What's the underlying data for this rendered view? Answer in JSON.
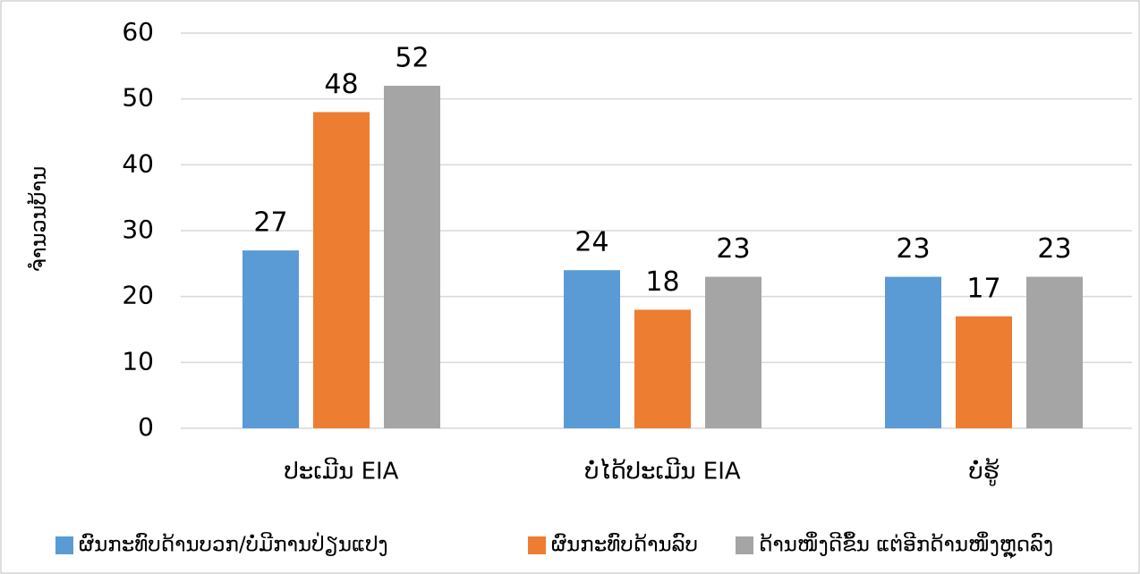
{
  "chart_data": {
    "type": "bar",
    "y_label": "ຈຳນວນບ້ານ",
    "categories": [
      "ປະເມີນ EIA",
      "ບໍ່ໄດ້ປະເມີນ EIA",
      "ບໍ່ຮູ້"
    ],
    "series": [
      {
        "name": "ຜົນກະທົບດ້ານບວກ/ບໍ່ມີການປ່ຽນແປງ",
        "color": "#5b9bd5",
        "values": [
          27,
          24,
          23
        ]
      },
      {
        "name": "ຜົນກະທົບດ້ານລົບ",
        "color": "#ed7d31",
        "values": [
          48,
          18,
          17
        ]
      },
      {
        "name": "ດ້ານໜຶ່ງດີຂຶ້ນ ແຕ່ອີກດ້ານໜຶ່ງຫຼຸດລົງ",
        "color": "#a5a5a5",
        "values": [
          52,
          23,
          23
        ]
      }
    ],
    "ylim": [
      0,
      60
    ],
    "yticks": [
      0,
      10,
      20,
      30,
      40,
      50,
      60
    ],
    "grid": true,
    "legend": "bottom"
  }
}
